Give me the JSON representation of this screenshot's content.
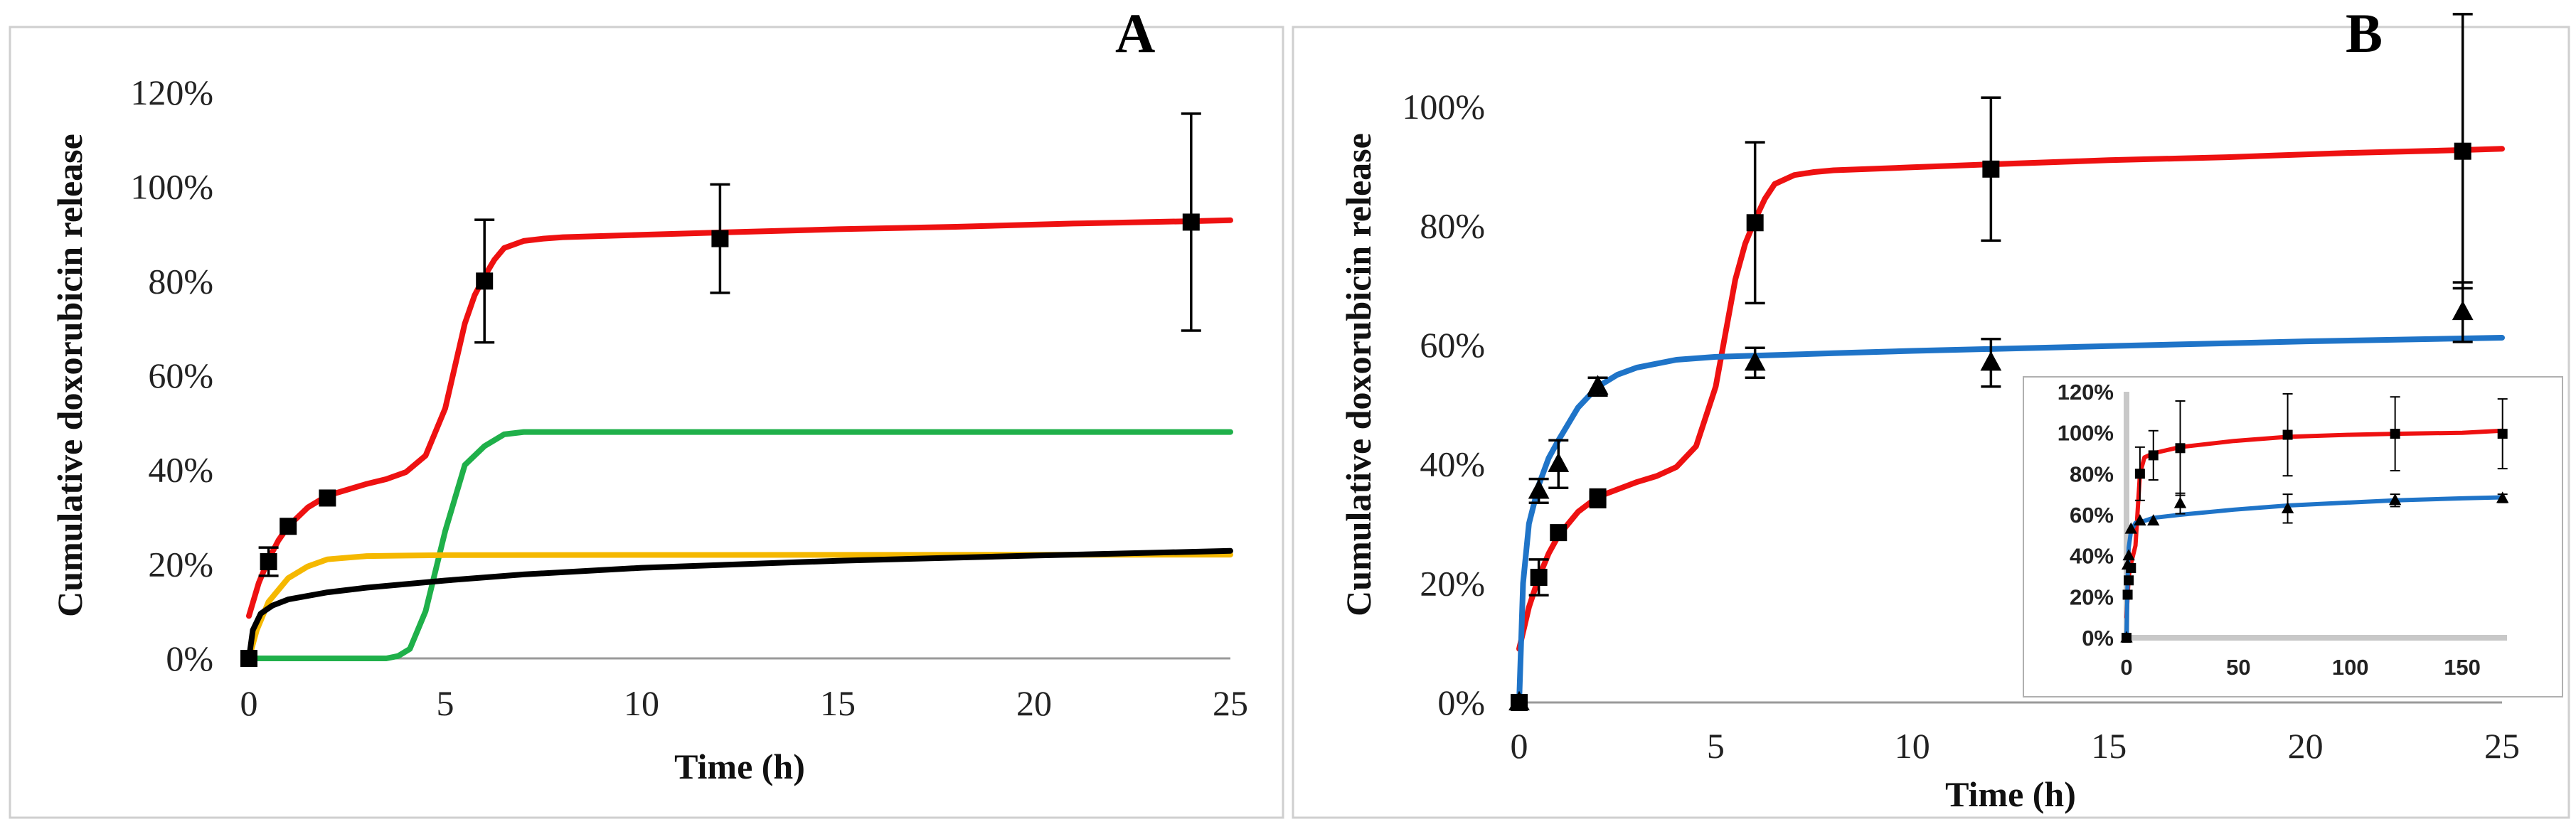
{
  "panels": {
    "A": {
      "label": "A"
    },
    "B": {
      "label": "B"
    }
  },
  "colors": {
    "red": "#ee1111",
    "green": "#1fb04a",
    "yellow": "#f5b800",
    "black": "#000000",
    "blue": "#1f74c8",
    "inset_axis_gray": "#c8c8c8"
  },
  "chart_data": [
    {
      "id": "panelA",
      "type": "line",
      "xlabel": "Time (h)",
      "ylabel": "Cumulative doxorubicin release",
      "xlim": [
        0,
        25
      ],
      "ylim": [
        0,
        1.2
      ],
      "xticks": [
        0,
        5,
        10,
        15,
        20,
        25
      ],
      "yticks": [
        0,
        0.2,
        0.4,
        0.6,
        0.8,
        1.0,
        1.2
      ],
      "ytick_labels": [
        "0%",
        "20%",
        "40%",
        "60%",
        "80%",
        "100%",
        "120%"
      ],
      "series": [
        {
          "name": "fit-red",
          "color": "#ee1111",
          "kind": "line",
          "x": [
            0,
            0.25,
            0.5,
            0.75,
            1,
            1.5,
            2,
            3,
            3.5,
            4,
            4.5,
            5,
            5.25,
            5.5,
            5.75,
            6,
            6.25,
            6.5,
            7,
            7.5,
            8,
            10,
            12,
            15,
            18,
            21,
            24,
            25
          ],
          "y": [
            0.09,
            0.16,
            0.21,
            0.25,
            0.28,
            0.32,
            0.345,
            0.37,
            0.38,
            0.395,
            0.43,
            0.53,
            0.62,
            0.71,
            0.77,
            0.81,
            0.845,
            0.87,
            0.885,
            0.89,
            0.893,
            0.898,
            0.903,
            0.91,
            0.915,
            0.922,
            0.927,
            0.929
          ]
        },
        {
          "name": "fit-green",
          "color": "#1fb04a",
          "kind": "line",
          "x": [
            0,
            3,
            3.5,
            3.8,
            4.1,
            4.5,
            5,
            5.5,
            6,
            6.5,
            7,
            7.5,
            8,
            25
          ],
          "y": [
            0,
            0,
            0,
            0.005,
            0.02,
            0.1,
            0.27,
            0.41,
            0.45,
            0.475,
            0.48,
            0.48,
            0.48,
            0.48
          ]
        },
        {
          "name": "fit-yellow",
          "color": "#f5b800",
          "kind": "line",
          "x": [
            0,
            0.2,
            0.5,
            1,
            1.5,
            2,
            3,
            4,
            5,
            25
          ],
          "y": [
            0,
            0.06,
            0.12,
            0.17,
            0.195,
            0.21,
            0.217,
            0.218,
            0.219,
            0.22
          ]
        },
        {
          "name": "fit-black",
          "color": "#000000",
          "kind": "line",
          "x": [
            0,
            0.1,
            0.3,
            0.6,
            1,
            2,
            3,
            5,
            7,
            10,
            15,
            20,
            25
          ],
          "y": [
            0,
            0.06,
            0.095,
            0.112,
            0.125,
            0.14,
            0.15,
            0.165,
            0.178,
            0.192,
            0.207,
            0.218,
            0.228
          ]
        },
        {
          "name": "measured",
          "color": "#000000",
          "kind": "points",
          "marker": "square",
          "x": [
            0,
            0.5,
            1,
            2,
            6,
            12,
            24
          ],
          "y": [
            0,
            0.205,
            0.28,
            0.34,
            0.8,
            0.89,
            0.925
          ],
          "err": [
            0,
            0.03,
            0,
            0,
            0.13,
            0.115,
            0.23
          ]
        }
      ]
    },
    {
      "id": "panelB",
      "type": "line",
      "xlabel": "Time (h)",
      "ylabel": "Cumulative doxorubicin release",
      "xlim": [
        0,
        25
      ],
      "ylim": [
        0,
        1.1
      ],
      "xticks": [
        0,
        5,
        10,
        15,
        20,
        25
      ],
      "yticks": [
        0,
        0.2,
        0.4,
        0.6,
        0.8,
        1.0
      ],
      "ytick_labels": [
        "0%",
        "20%",
        "40%",
        "60%",
        "80%",
        "100%"
      ],
      "series": [
        {
          "name": "fit-red",
          "color": "#ee1111",
          "kind": "line",
          "x": [
            0,
            0.25,
            0.5,
            0.75,
            1,
            1.5,
            2,
            3,
            3.5,
            4,
            4.5,
            5,
            5.25,
            5.5,
            5.75,
            6,
            6.25,
            6.5,
            7,
            7.5,
            8,
            10,
            12,
            15,
            18,
            21,
            24,
            25
          ],
          "y": [
            0.09,
            0.16,
            0.21,
            0.25,
            0.28,
            0.32,
            0.345,
            0.37,
            0.38,
            0.395,
            0.43,
            0.53,
            0.62,
            0.71,
            0.77,
            0.81,
            0.845,
            0.87,
            0.885,
            0.89,
            0.893,
            0.898,
            0.903,
            0.91,
            0.915,
            0.922,
            0.927,
            0.929
          ]
        },
        {
          "name": "fit-blue",
          "color": "#1f74c8",
          "kind": "line",
          "x": [
            0,
            0.1,
            0.25,
            0.5,
            0.75,
            1,
            1.5,
            2,
            2.5,
            3,
            4,
            5,
            6,
            8,
            10,
            15,
            20,
            25
          ],
          "y": [
            0,
            0.2,
            0.3,
            0.365,
            0.41,
            0.44,
            0.495,
            0.53,
            0.55,
            0.562,
            0.575,
            0.58,
            0.582,
            0.586,
            0.59,
            0.598,
            0.606,
            0.612
          ]
        },
        {
          "name": "measured-squares",
          "color": "#000000",
          "kind": "points",
          "marker": "square",
          "x": [
            0,
            0.5,
            1,
            2,
            2,
            6,
            12,
            24
          ],
          "y": [
            0,
            0.21,
            0.285,
            0.34,
            0.345,
            0.805,
            0.895,
            0.925
          ],
          "err": [
            0,
            0.03,
            0,
            0,
            0,
            0.135,
            0.12,
            0.23
          ]
        },
        {
          "name": "measured-triangles",
          "color": "#000000",
          "kind": "points",
          "marker": "triangle",
          "x": [
            0,
            0.5,
            1,
            2,
            6,
            12,
            24
          ],
          "y": [
            0,
            0.355,
            0.4,
            0.53,
            0.57,
            0.57,
            0.655
          ],
          "err": [
            0,
            0.02,
            0.04,
            0.015,
            0.025,
            0.04,
            0.05
          ]
        }
      ]
    },
    {
      "id": "panelB-inset",
      "type": "line",
      "xlabel": "",
      "ylabel": "",
      "xlim": [
        0,
        170
      ],
      "ylim": [
        0,
        1.2
      ],
      "xticks": [
        0,
        50,
        100,
        150
      ],
      "yticks": [
        0,
        0.2,
        0.4,
        0.6,
        0.8,
        1.0,
        1.2
      ],
      "ytick_labels": [
        "0%",
        "20%",
        "40%",
        "60%",
        "80%",
        "100%",
        "120%"
      ],
      "series": [
        {
          "name": "fit-red",
          "color": "#ee1111",
          "kind": "line",
          "x": [
            0,
            1,
            2,
            4,
            6,
            8,
            12,
            24,
            48,
            72,
            100,
            120,
            150,
            168
          ],
          "y": [
            0.1,
            0.3,
            0.36,
            0.45,
            0.8,
            0.88,
            0.9,
            0.93,
            0.96,
            0.98,
            0.99,
            0.995,
            1.0,
            1.01
          ]
        },
        {
          "name": "fit-blue",
          "color": "#1f74c8",
          "kind": "line",
          "x": [
            0,
            0.5,
            1,
            2,
            4,
            8,
            12,
            24,
            48,
            72,
            100,
            120,
            150,
            168
          ],
          "y": [
            0,
            0.3,
            0.44,
            0.52,
            0.56,
            0.57,
            0.585,
            0.6,
            0.625,
            0.645,
            0.66,
            0.67,
            0.68,
            0.685
          ]
        },
        {
          "name": "measured-squares",
          "color": "#000000",
          "kind": "points",
          "marker": "square",
          "x": [
            0,
            0.5,
            1,
            2,
            6,
            12,
            24,
            72,
            120,
            168
          ],
          "y": [
            0,
            0.21,
            0.28,
            0.34,
            0.8,
            0.89,
            0.925,
            0.99,
            0.995,
            0.995
          ],
          "err": [
            0,
            0,
            0,
            0,
            0.13,
            0.12,
            0.23,
            0.2,
            0.18,
            0.17
          ]
        },
        {
          "name": "measured-triangles",
          "color": "#000000",
          "kind": "points",
          "marker": "triangle",
          "x": [
            0,
            0.5,
            1,
            2,
            6,
            12,
            24,
            72,
            120,
            168
          ],
          "y": [
            0,
            0.355,
            0.4,
            0.53,
            0.57,
            0.57,
            0.655,
            0.63,
            0.67,
            0.68
          ],
          "err": [
            0,
            0,
            0,
            0,
            0,
            0,
            0.05,
            0.07,
            0.03,
            0.02
          ]
        }
      ]
    }
  ]
}
